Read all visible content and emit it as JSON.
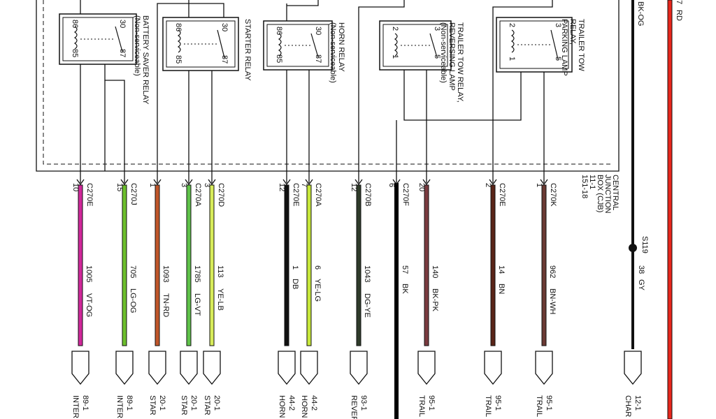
{
  "cjb_label": [
    "CENTRAL",
    "JUNCTION",
    "BOX (CJB)",
    "11-1",
    "151-18"
  ],
  "relays": [
    {
      "label": [
        "BATTERY SAVER RELAY",
        "(Non-serviceable)"
      ],
      "pins": [
        "86",
        "30",
        "85",
        "87"
      ]
    },
    {
      "label": [
        "STARTER RELAY"
      ],
      "pins": [
        "86",
        "30",
        "85",
        "87"
      ]
    },
    {
      "label": [
        "HORN RELAY",
        "(Non-serviceable)"
      ],
      "pins": [
        "86",
        "30",
        "85",
        "87"
      ]
    },
    {
      "label": [
        "TRAILER TOW RELAY,",
        "REVERSING LAMP",
        "(Non-serviceable)"
      ],
      "pins": [
        "2",
        "3",
        "1",
        "5"
      ]
    },
    {
      "label": [
        "TRAILER TOW",
        "RELAY,",
        "PARKING LAMP"
      ],
      "pins": [
        "2",
        "3",
        "1",
        "5"
      ]
    }
  ],
  "wires": [
    {
      "connector": "C270E",
      "pin": "10",
      "circuit": "1005",
      "code": "VT-OG",
      "color": "#d0289a",
      "dest": [
        "89-1",
        "INTER"
      ]
    },
    {
      "connector": "C270J",
      "pin": "15",
      "circuit": "705",
      "code": "LG-OG",
      "color": "#6cbf2c",
      "dest": [
        "89-1",
        "INTER"
      ]
    },
    {
      "connector": null,
      "pin": "1",
      "circuit": "1093",
      "code": "TN-RD",
      "color": "#c0562a",
      "dest": [
        "20-1",
        "STAR"
      ]
    },
    {
      "connector": "C270A",
      "pin": "3",
      "circuit": "1785",
      "code": "LG-VT",
      "color": "#5fc24a",
      "dest": [
        "20-1",
        "STAR"
      ]
    },
    {
      "connector": "C270D",
      "pin": "3",
      "circuit": "113",
      "code": "YE-LB",
      "color": "#d8ec5a",
      "dest": [
        "20-1",
        "STAR"
      ]
    },
    {
      "connector": "C270E",
      "pin": "12",
      "circuit": "1",
      "code": "DB",
      "color": "#111111",
      "dest": [
        "44-2",
        "HORN"
      ]
    },
    {
      "connector": "C270A",
      "pin": "7",
      "circuit": "6",
      "code": "YE-LG",
      "color": "#c8e83a",
      "dest": [
        "44-2",
        "HORN"
      ]
    },
    {
      "connector": "C270B",
      "pin": "12",
      "circuit": "1043",
      "code": "DG-YE",
      "color": "#2f3b2a",
      "dest": [
        "93-1",
        "REVER"
      ]
    },
    {
      "connector": "C270F",
      "pin": "6",
      "circuit": "57",
      "code": "BK",
      "color": "#000000",
      "dest": null
    },
    {
      "connector": null,
      "pin": "20",
      "circuit": "140",
      "code": "BK-PK",
      "color": "#7a3a3f",
      "dest": [
        "95-1",
        "TRAIL"
      ]
    },
    {
      "connector": "C270E",
      "pin": "2",
      "circuit": "14",
      "code": "BN",
      "color": "#5a2418",
      "dest": [
        "95-1",
        "TRAIL"
      ]
    },
    {
      "connector": "C270K",
      "pin": "1",
      "circuit": "962",
      "code": "BN-WH",
      "color": "#6b3a33",
      "dest": [
        "95-1",
        "TRAIL"
      ]
    }
  ],
  "feed": {
    "top_code": "BK-OG",
    "splice": "S119",
    "circuit": "38",
    "code": "GY",
    "dest": [
      "12-1",
      "CHAR"
    ]
  },
  "power": {
    "circuit": "7",
    "code": "RD"
  }
}
